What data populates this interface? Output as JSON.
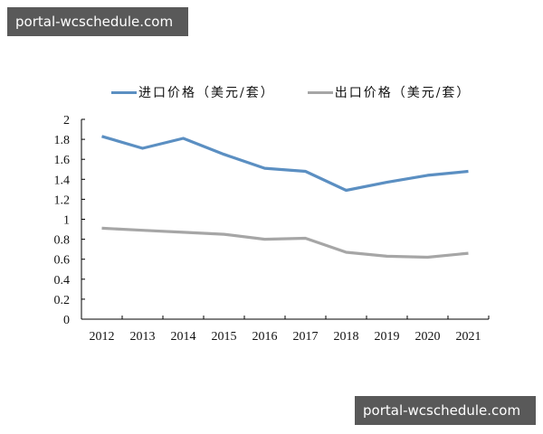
{
  "watermarks": {
    "top": "portal-wcschedule.com",
    "bottom": "portal-wcschedule.com"
  },
  "legend": [
    {
      "label": "进口价格（美元/套）",
      "color": "#5b8fc2"
    },
    {
      "label": "出口价格（美元/套）",
      "color": "#a6a6a6"
    }
  ],
  "chart_data": {
    "type": "line",
    "title": "",
    "xlabel": "",
    "ylabel": "",
    "categories": [
      "2012",
      "2013",
      "2014",
      "2015",
      "2016",
      "2017",
      "2018",
      "2019",
      "2020",
      "2021"
    ],
    "series": [
      {
        "name": "进口价格（美元/套）",
        "color": "#5b8fc2",
        "values": [
          1.83,
          1.71,
          1.81,
          1.65,
          1.51,
          1.48,
          1.29,
          1.37,
          1.44,
          1.48
        ]
      },
      {
        "name": "出口价格（美元/套）",
        "color": "#a6a6a6",
        "values": [
          0.91,
          0.89,
          0.87,
          0.85,
          0.8,
          0.81,
          0.67,
          0.63,
          0.62,
          0.66
        ]
      }
    ],
    "ylim": [
      0,
      2
    ],
    "yticks": [
      "0",
      "0.2",
      "0.4",
      "0.6",
      "0.8",
      "1",
      "1.2",
      "1.4",
      "1.6",
      "1.8",
      "2"
    ],
    "grid": false,
    "legend_position": "top"
  }
}
